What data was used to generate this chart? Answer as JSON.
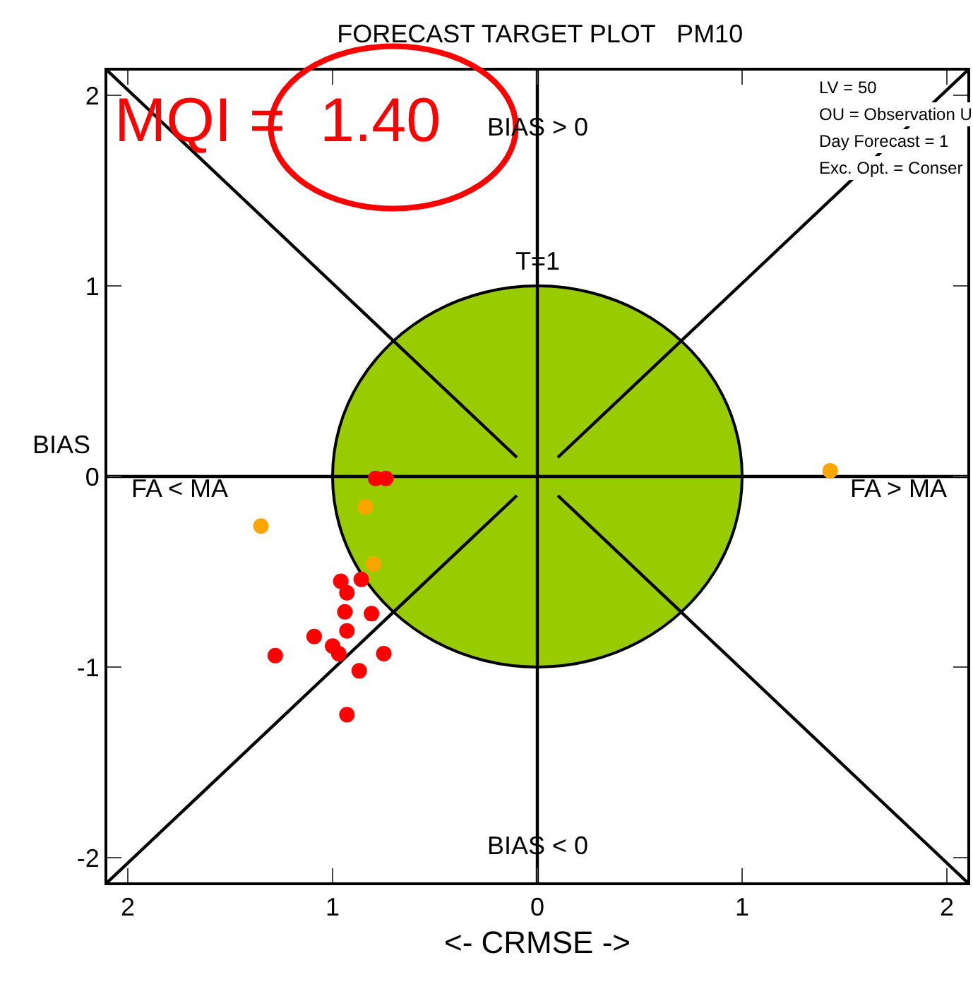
{
  "chart_data": {
    "type": "scatter",
    "title": "FORECAST TARGET PLOT   PM10",
    "xlabel": "<- CRMSE ->",
    "ylabel": "BIAS",
    "xlim": [
      -2.1,
      2.1
    ],
    "ylim": [
      -2.13,
      2.13
    ],
    "xticks": [
      {
        "value": -2,
        "label": "2"
      },
      {
        "value": -1,
        "label": "1"
      },
      0,
      1,
      2
    ],
    "yticks": [
      -2,
      -1,
      0,
      1,
      2
    ],
    "series": [
      {
        "type": "area",
        "color": "#99cc00",
        "x": [
          1,
          0.966,
          0.866,
          0.707,
          0.5,
          0.259,
          0,
          -0.259,
          -0.5,
          -0.707,
          -0.866,
          -0.966,
          -1,
          -0.966,
          -0.866,
          -0.707,
          -0.5,
          -0.259,
          0,
          0.259,
          0.5,
          0.707,
          0.866,
          0.966,
          1
        ],
        "values": [
          0,
          0.259,
          0.5,
          0.707,
          0.866,
          0.966,
          1,
          0.966,
          0.866,
          0.707,
          0.5,
          0.259,
          0,
          -0.259,
          -0.5,
          -0.707,
          -0.866,
          -0.966,
          -1,
          -0.966,
          -0.866,
          -0.707,
          -0.5,
          -0.259,
          0
        ]
      },
      {
        "type": "line",
        "color": "#000000",
        "x": [
          0,
          0
        ],
        "values": [
          -2.13,
          2.13
        ]
      },
      {
        "type": "line",
        "color": "#000000",
        "x": [
          -2.1,
          2.1
        ],
        "values": [
          0,
          0
        ]
      },
      {
        "type": "line",
        "color": "#000000",
        "x": [
          -2.1,
          -0.1
        ],
        "values": [
          2.13,
          0.1
        ]
      },
      {
        "type": "line",
        "color": "#000000",
        "x": [
          0.1,
          2.1
        ],
        "values": [
          0.1,
          2.13
        ]
      },
      {
        "type": "line",
        "color": "#000000",
        "x": [
          -2.1,
          -0.1
        ],
        "values": [
          -2.13,
          -0.1
        ]
      },
      {
        "type": "line",
        "color": "#000000",
        "x": [
          0.1,
          2.1
        ],
        "values": [
          -0.1,
          -2.13
        ]
      },
      {
        "marker": "circle",
        "color": "#ff0000",
        "x": [
          -0.79,
          -0.74,
          -0.96,
          -0.86,
          -0.93,
          -0.94,
          -0.81,
          -0.93,
          -1.09,
          -1.0,
          -0.97,
          -0.75,
          -1.28,
          -0.87,
          -0.93
        ],
        "values": [
          -0.01,
          -0.01,
          -0.55,
          -0.54,
          -0.61,
          -0.71,
          -0.72,
          -0.81,
          -0.84,
          -0.89,
          -0.93,
          -0.93,
          -0.94,
          -1.02,
          -1.25
        ]
      },
      {
        "marker": "circle",
        "color": "#ffa500",
        "x": [
          -0.84,
          -1.35,
          -0.8,
          1.43
        ],
        "values": [
          -0.16,
          -0.26,
          -0.46,
          0.03
        ]
      }
    ],
    "annotations": [
      "MQI =  1.40",
      "BIAS > 0",
      "BIAS < 0",
      "FA < MA",
      "FA > MA",
      "T=1",
      "LV = 50",
      "OU = Observation U",
      "Day Forecast = 1",
      "Exc. Opt. = Conser"
    ]
  }
}
